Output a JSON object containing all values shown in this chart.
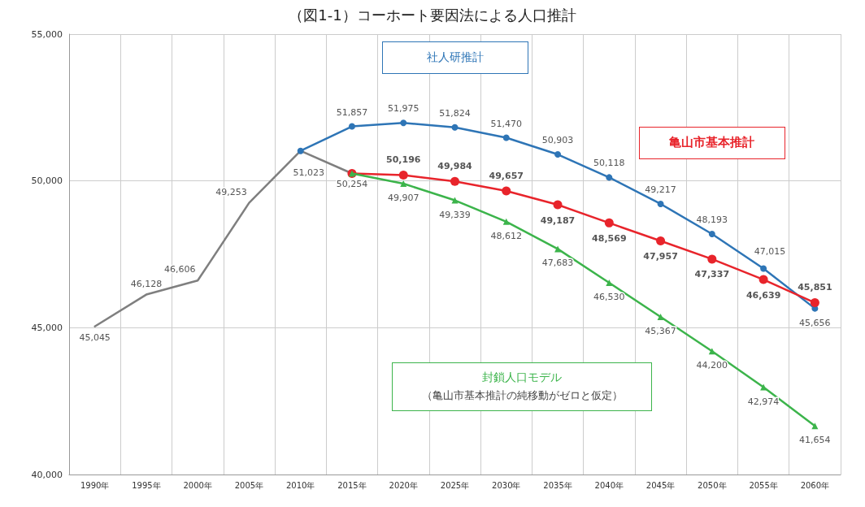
{
  "chart_data": {
    "type": "line",
    "title": "（図1-1）コーホート要因法による人口推計",
    "categories": [
      "1990年",
      "1995年",
      "2000年",
      "2005年",
      "2010年",
      "2015年",
      "2020年",
      "2025年",
      "2030年",
      "2035年",
      "2040年",
      "2045年",
      "2050年",
      "2055年",
      "2060年"
    ],
    "ylim": [
      40000,
      55000
    ],
    "yticks": [
      {
        "value": 40000,
        "label": "40,000"
      },
      {
        "value": 45000,
        "label": "45,000"
      },
      {
        "value": 50000,
        "label": "50,000"
      },
      {
        "value": 55000,
        "label": "55,000"
      }
    ],
    "grid": true,
    "legend": false,
    "series": [
      {
        "color": "#7f7f7f",
        "marker": "none",
        "values": [
          45045,
          46128,
          46606,
          49253,
          51023,
          50254,
          null,
          null,
          null,
          null,
          null,
          null,
          null,
          null,
          null
        ],
        "value_labels": [
          "45,045",
          "46,128",
          "46,606",
          "49,253",
          "51,023",
          "50,254",
          null,
          null,
          null,
          null,
          null,
          null,
          null,
          null,
          null
        ]
      },
      {
        "name": "社人研推計",
        "color": "#2e75b6",
        "marker": "circle",
        "values": [
          null,
          null,
          null,
          null,
          51023,
          51857,
          51975,
          51824,
          51470,
          50903,
          50118,
          49217,
          48193,
          47015,
          45656
        ],
        "value_labels": [
          null,
          null,
          null,
          null,
          null,
          "51,857",
          "51,975",
          "51,824",
          "51,470",
          "50,903",
          "50,118",
          "49,217",
          "48,193",
          "47,015",
          "45,656"
        ]
      },
      {
        "name": "亀山市基本推計",
        "color": "#e8242b",
        "marker": "circle",
        "values": [
          null,
          null,
          null,
          null,
          null,
          50254,
          50196,
          49984,
          49657,
          49187,
          48569,
          47957,
          47337,
          46639,
          45851
        ],
        "value_labels": [
          null,
          null,
          null,
          null,
          null,
          null,
          "50,196",
          "49,984",
          "49,657",
          "49,187",
          "48,569",
          "47,957",
          "47,337",
          "46,639",
          "45,851"
        ]
      },
      {
        "name": "封鎖人口モデル",
        "color": "#3cb44b",
        "marker": "triangle",
        "values": [
          null,
          null,
          null,
          null,
          null,
          50254,
          49907,
          49339,
          48612,
          47683,
          46530,
          45367,
          44200,
          42974,
          41654
        ],
        "value_labels": [
          null,
          null,
          null,
          null,
          null,
          null,
          "49,907",
          "49,339",
          "48,612",
          "47,683",
          "46,530",
          "45,367",
          "44,200",
          "42,974",
          "41,654"
        ]
      }
    ],
    "annotations": [
      "（亀山市基本推計の純移動がゼロと仮定）"
    ]
  }
}
